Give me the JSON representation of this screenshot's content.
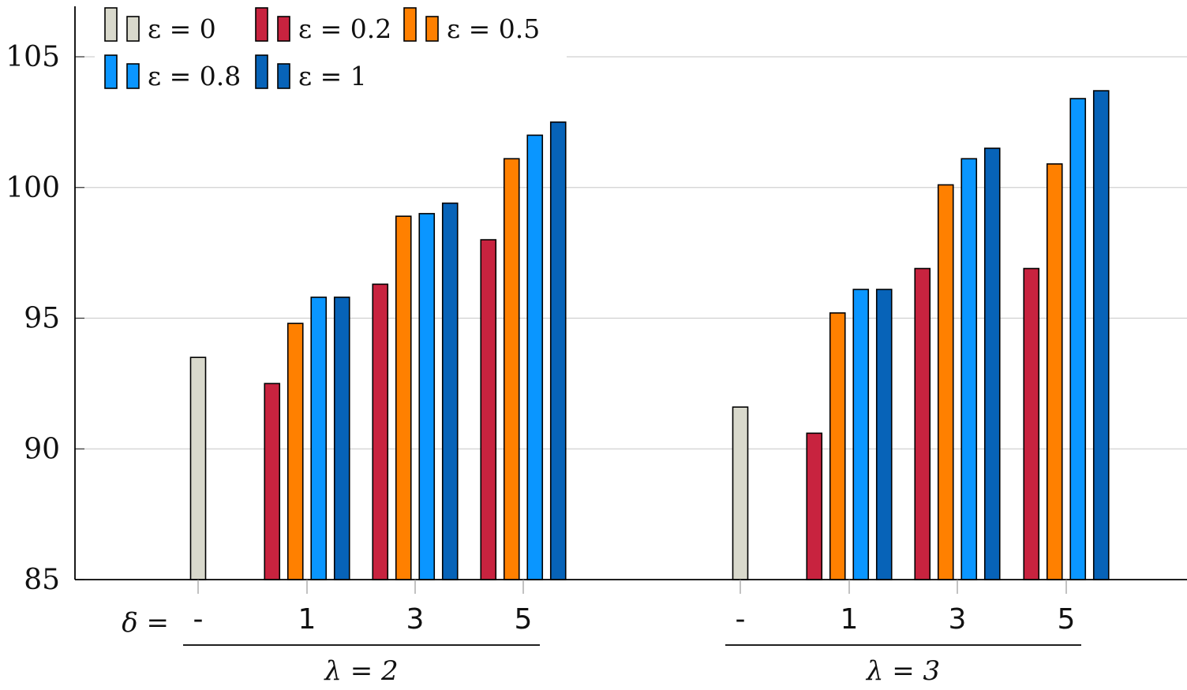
{
  "chart_data": {
    "type": "bar",
    "ylim": [
      85,
      107
    ],
    "yticks": [
      "85",
      "90",
      "95",
      "100",
      "105"
    ],
    "grid": "horizontal",
    "legend_position": "top-left",
    "delta_label": "δ =",
    "groups": [
      {
        "label": "λ = 2",
        "categories": [
          {
            "label": "-",
            "bars": [
              {
                "series": 0,
                "value": 93.5
              }
            ]
          },
          {
            "label": "1",
            "bars": [
              {
                "series": 1,
                "value": 92.5
              },
              {
                "series": 2,
                "value": 94.8
              },
              {
                "series": 3,
                "value": 95.8
              },
              {
                "series": 4,
                "value": 95.8
              }
            ]
          },
          {
            "label": "3",
            "bars": [
              {
                "series": 1,
                "value": 96.3
              },
              {
                "series": 2,
                "value": 98.9
              },
              {
                "series": 3,
                "value": 99.0
              },
              {
                "series": 4,
                "value": 99.4
              }
            ]
          },
          {
            "label": "5",
            "bars": [
              {
                "series": 1,
                "value": 98.0
              },
              {
                "series": 2,
                "value": 101.1
              },
              {
                "series": 3,
                "value": 102.0
              },
              {
                "series": 4,
                "value": 102.5
              }
            ]
          }
        ]
      },
      {
        "label": "λ = 3",
        "categories": [
          {
            "label": "-",
            "bars": [
              {
                "series": 0,
                "value": 91.6
              }
            ]
          },
          {
            "label": "1",
            "bars": [
              {
                "series": 1,
                "value": 90.6
              },
              {
                "series": 2,
                "value": 95.2
              },
              {
                "series": 3,
                "value": 96.1
              },
              {
                "series": 4,
                "value": 96.1
              }
            ]
          },
          {
            "label": "3",
            "bars": [
              {
                "series": 1,
                "value": 96.9
              },
              {
                "series": 2,
                "value": 100.1
              },
              {
                "series": 3,
                "value": 101.1
              },
              {
                "series": 4,
                "value": 101.5
              }
            ]
          },
          {
            "label": "5",
            "bars": [
              {
                "series": 1,
                "value": 96.9
              },
              {
                "series": 2,
                "value": 100.9
              },
              {
                "series": 3,
                "value": 103.4
              },
              {
                "series": 4,
                "value": 103.7
              }
            ]
          }
        ]
      }
    ],
    "series": [
      {
        "name": "ε = 0",
        "color": "#d9d9cc"
      },
      {
        "name": "ε = 0.2",
        "color": "#c8233f"
      },
      {
        "name": "ε = 0.5",
        "color": "#ff8000"
      },
      {
        "name": "ε = 0.8",
        "color": "#0a96ff"
      },
      {
        "name": "ε = 1",
        "color": "#0763b8"
      }
    ]
  }
}
